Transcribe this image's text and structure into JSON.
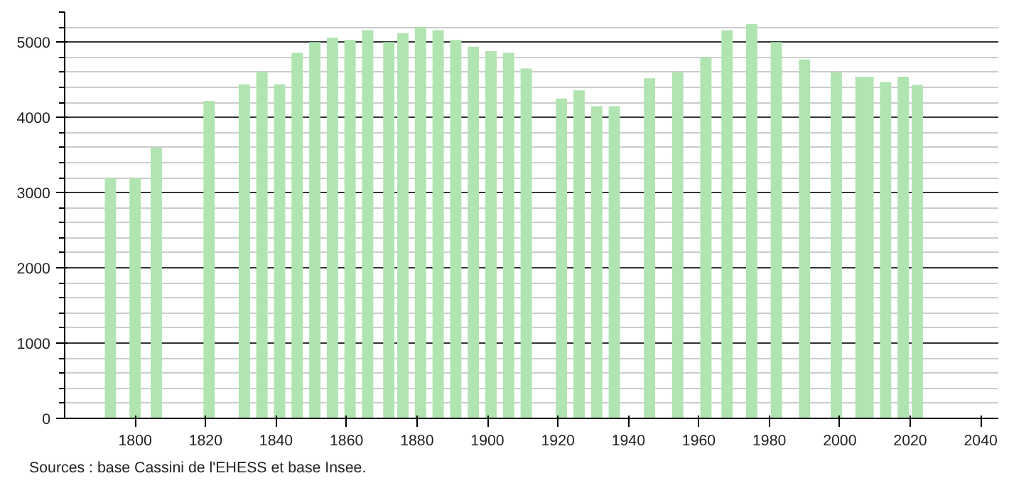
{
  "chart_data": {
    "type": "bar",
    "x": [
      1793,
      1800,
      1806,
      1821,
      1831,
      1836,
      1841,
      1846,
      1851,
      1856,
      1861,
      1866,
      1872,
      1876,
      1881,
      1886,
      1891,
      1896,
      1901,
      1906,
      1911,
      1921,
      1926,
      1931,
      1936,
      1946,
      1954,
      1962,
      1968,
      1975,
      1982,
      1990,
      1999,
      2006,
      2008,
      2013,
      2018,
      2022
    ],
    "values": [
      3190,
      3190,
      3600,
      4220,
      4440,
      4610,
      4440,
      4860,
      5000,
      5060,
      5030,
      5160,
      5000,
      5120,
      5200,
      5160,
      5030,
      4940,
      4880,
      4860,
      4650,
      4250,
      4360,
      4150,
      4150,
      4520,
      4600,
      4800,
      5160,
      5240,
      5000,
      4770,
      4600,
      4540,
      4540,
      4470,
      4540,
      4430
    ],
    "color": "#b0e4b0",
    "xlim": [
      1780,
      2045
    ],
    "xticks": [
      1800,
      1820,
      1840,
      1860,
      1880,
      1900,
      1920,
      1940,
      1960,
      1980,
      2000,
      2020,
      2040
    ],
    "ylim": [
      0,
      5400
    ],
    "yticks": [
      0,
      1000,
      2000,
      3000,
      4000,
      5000
    ],
    "grid": "y",
    "annotations": [
      "Sources : base Cassini de l'EHESS et base Insee."
    ]
  }
}
